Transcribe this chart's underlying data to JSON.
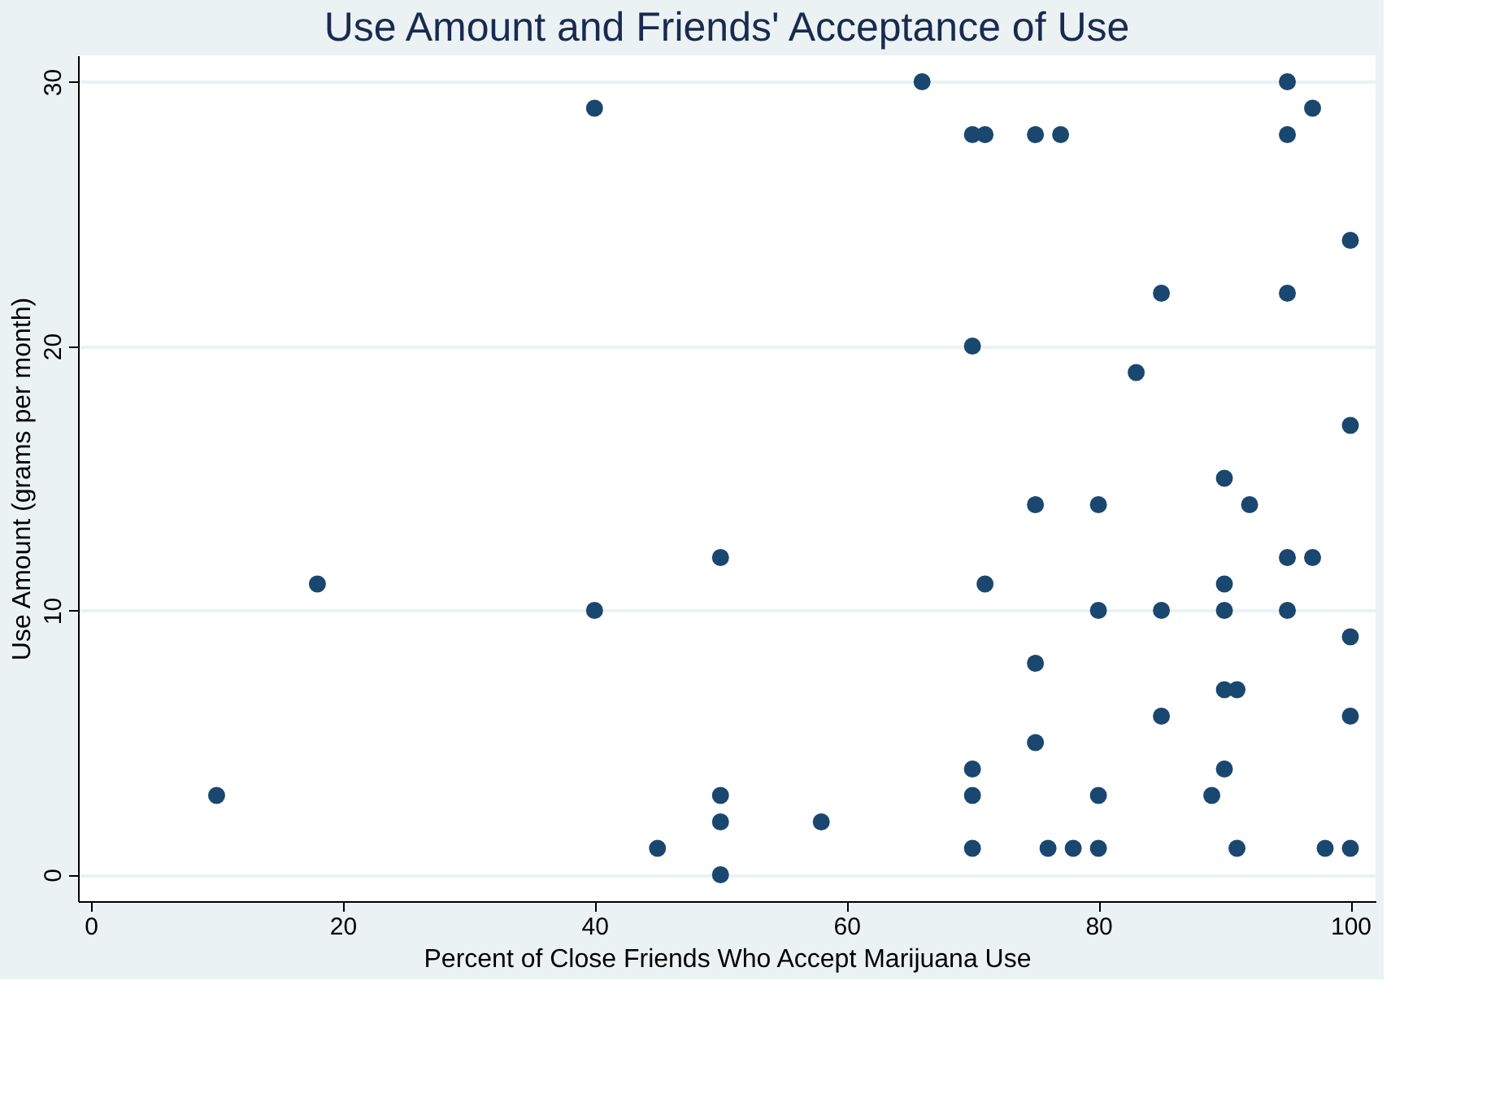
{
  "chart_data": {
    "type": "scatter",
    "title": "Use Amount and Friends' Acceptance of Use",
    "xlabel": "Percent of Close Friends Who Accept Marijuana Use",
    "ylabel": "Use Amount (grams per month)",
    "x": [
      10,
      18,
      40,
      40,
      45,
      50,
      50,
      50,
      50,
      58,
      66,
      70,
      71,
      75,
      77,
      70,
      70,
      70,
      70,
      71,
      75,
      75,
      75,
      76,
      78,
      80,
      80,
      80,
      80,
      83,
      85,
      85,
      85,
      89,
      90,
      90,
      90,
      90,
      91,
      90,
      91,
      92,
      95,
      95,
      95,
      95,
      95,
      97,
      97,
      98,
      100,
      100,
      100,
      100,
      100
    ],
    "series": [
      {
        "color": "#1a476f",
        "values": [
          3,
          11,
          29,
          10,
          1,
          12,
          3,
          2,
          0,
          2,
          30,
          28,
          28,
          28,
          28,
          20,
          4,
          3,
          1,
          11,
          14,
          8,
          5,
          1,
          1,
          14,
          10,
          3,
          1,
          19,
          22,
          10,
          6,
          3,
          15,
          11,
          10,
          7,
          7,
          4,
          1,
          14,
          30,
          28,
          22,
          12,
          10,
          29,
          12,
          1,
          24,
          17,
          9,
          6,
          1
        ]
      }
    ],
    "xlim": [
      -1,
      102
    ],
    "ylim": [
      -1,
      31
    ],
    "xticks": [
      0,
      20,
      40,
      60,
      80,
      100
    ],
    "yticks": [
      0,
      10,
      20,
      30
    ],
    "grid": "y",
    "marker": "circle"
  }
}
